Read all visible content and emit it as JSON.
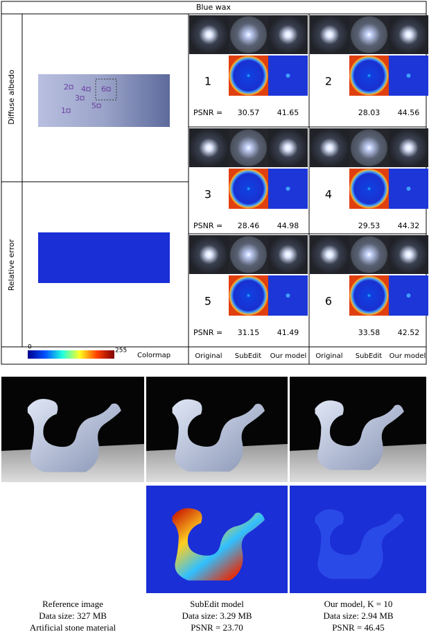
{
  "figure_top": {
    "title": "Blue wax",
    "row_labels": [
      "Diffuse albedo",
      "Relative error"
    ],
    "albedo_markers": [
      "1",
      "2",
      "3",
      "4",
      "5",
      "6"
    ],
    "cells": [
      {
        "id": "1",
        "psnr_label": "PSNR =",
        "subedit": "30.57",
        "ours": "41.65"
      },
      {
        "id": "2",
        "subedit": "28.03",
        "ours": "44.56"
      },
      {
        "id": "3",
        "psnr_label": "PSNR =",
        "subedit": "28.46",
        "ours": "44.98"
      },
      {
        "id": "4",
        "subedit": "29.53",
        "ours": "44.32"
      },
      {
        "id": "5",
        "psnr_label": "PSNR =",
        "subedit": "31.15",
        "ours": "41.49"
      },
      {
        "id": "6",
        "subedit": "33.58",
        "ours": "42.52"
      }
    ],
    "colormap": {
      "min": "0",
      "max": "255",
      "label": "Colormap"
    },
    "column_labels": [
      "Original",
      "SubEdit",
      "Our model",
      "Original",
      "SubEdit",
      "Our model"
    ]
  },
  "figure_bottom": {
    "captions": [
      [
        "Reference image",
        "Data size: 327 MB",
        "Artificial stone material"
      ],
      [
        "SubEdit model",
        "Data size: 3.29 MB",
        "PSNR = 23.70"
      ],
      [
        "Our model, K = 10",
        "Data size: 2.94 MB",
        "PSNR = 46.45"
      ]
    ]
  }
}
